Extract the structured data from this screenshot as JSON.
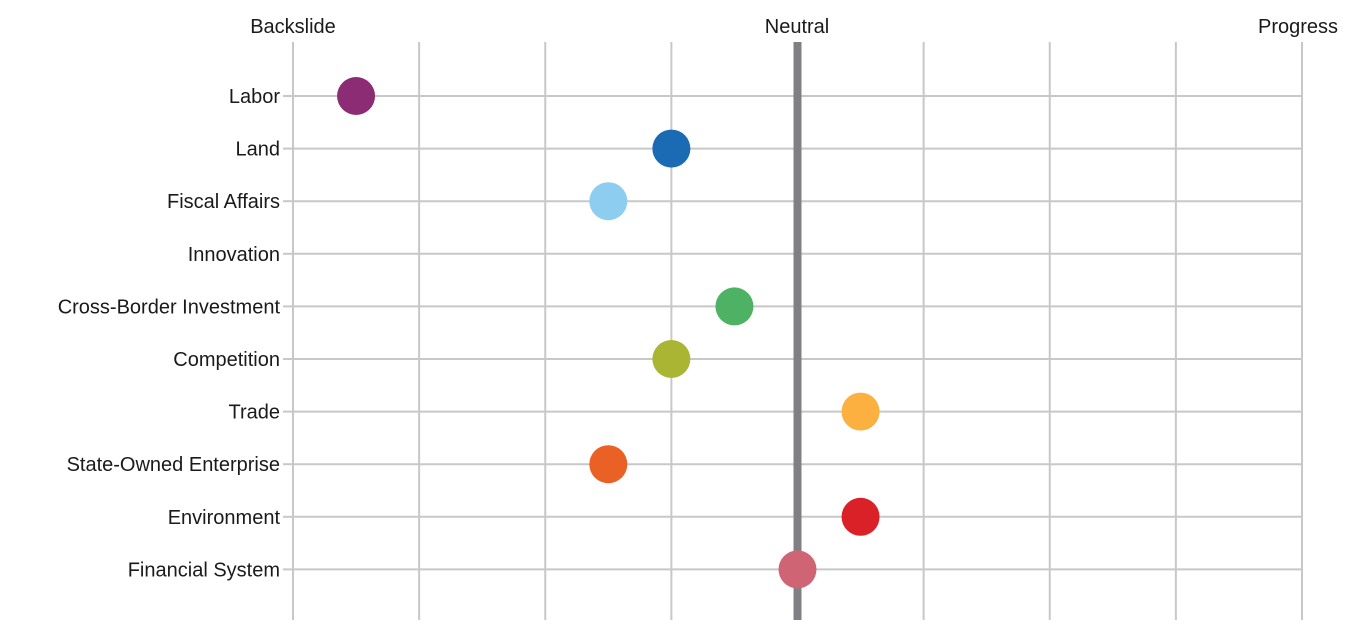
{
  "chart_data": {
    "type": "scatter",
    "top_labels": {
      "left": "Backslide",
      "center": "Neutral",
      "right": "Progress"
    },
    "categories": [
      "Labor",
      "Land",
      "Fiscal Affairs",
      "Innovation",
      "Cross-Border Investment",
      "Competition",
      "Trade",
      "State-Owned Enterprise",
      "Environment",
      "Financial System"
    ],
    "values": [
      -3.5,
      -1,
      -1.5,
      null,
      -0.5,
      -1,
      0.5,
      -1.5,
      0.5,
      0
    ],
    "colors": [
      "#8B2C74",
      "#1B6AB4",
      "#8DCDF0",
      null,
      "#4DB263",
      "#A9B533",
      "#FBB040",
      "#E96124",
      "#DA2127",
      "#CF6475"
    ],
    "xlim": [
      -4,
      4
    ],
    "x_gridlines": [
      -4,
      -3,
      -2,
      -1,
      0,
      1,
      2,
      3,
      4
    ],
    "neutral_value": 0,
    "grid": true,
    "colors_meta": {
      "grid": "#c8c8c8",
      "neutral_line": "#808084"
    }
  }
}
